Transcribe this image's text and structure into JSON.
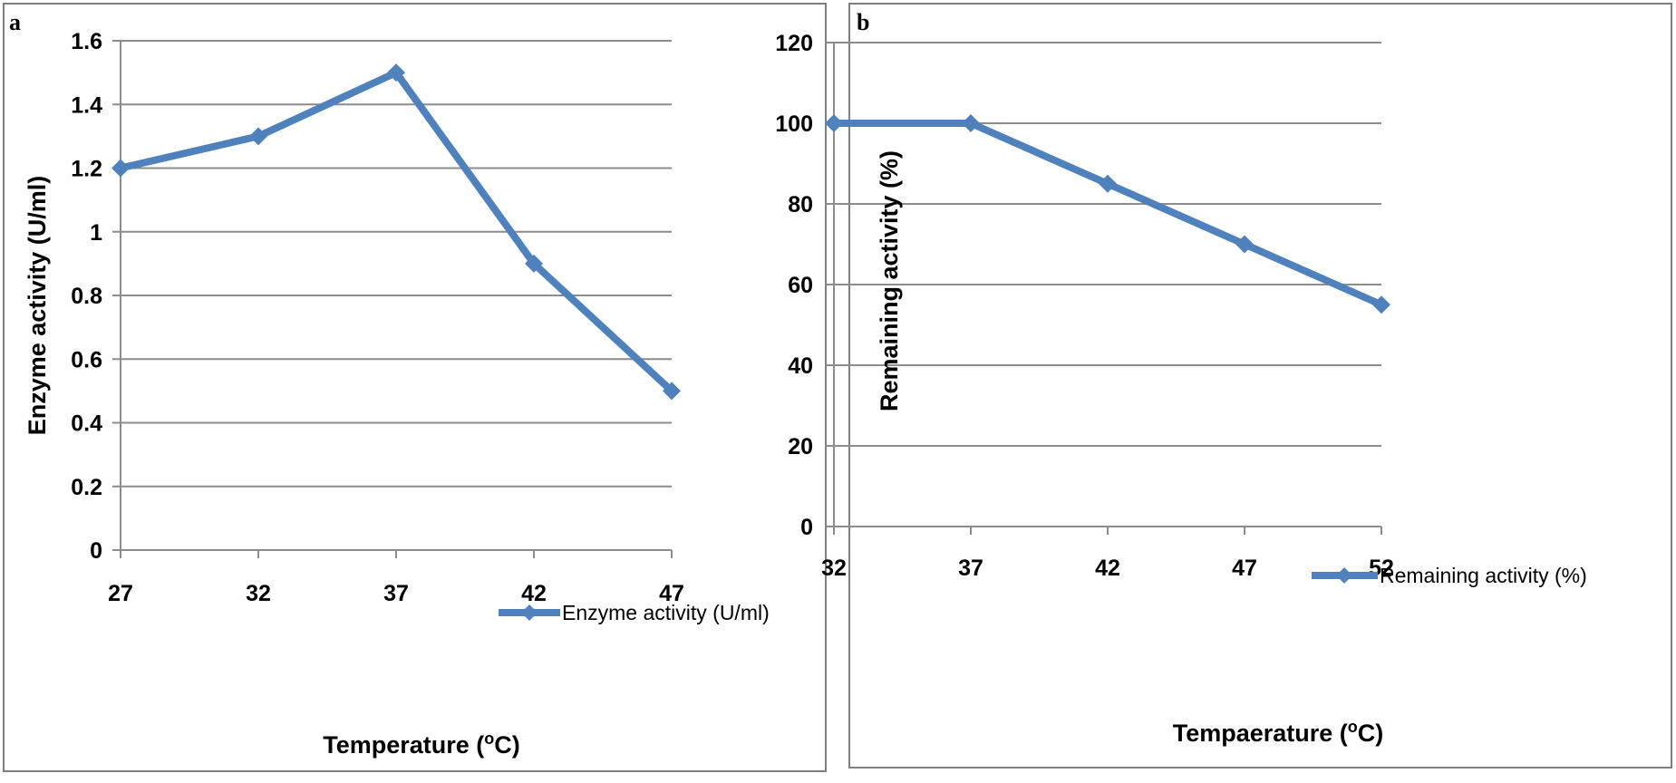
{
  "colors": {
    "series": "#4f81bd",
    "grid": "#8c8c8c",
    "frame": "#7f7f7f"
  },
  "chart_data": [
    {
      "type": "line",
      "panel": "a",
      "x": [
        27,
        32,
        37,
        42,
        47
      ],
      "series": [
        {
          "name": "Enzyme activity (U/ml)",
          "values": [
            1.2,
            1.3,
            1.5,
            0.9,
            0.5
          ]
        }
      ],
      "xlabel": "Temperature (",
      "xlabel_sup": "o",
      "xlabel_end": "C)",
      "ylabel": "Enzyme  activity (U/ml)",
      "ylim": [
        0,
        1.6
      ],
      "yticks": [
        "0",
        "0.2",
        "0.4",
        "0.6",
        "0.8",
        "1",
        "1.2",
        "1.4",
        "1.6"
      ],
      "xticks": [
        "27",
        "32",
        "37",
        "42",
        "47"
      ],
      "legend": "Enzyme activity (U/ml)",
      "legend_position": "bottom-right",
      "grid": true
    },
    {
      "type": "line",
      "panel": "b",
      "x": [
        32,
        37,
        42,
        47,
        52
      ],
      "series": [
        {
          "name": "Remaining activity (%)",
          "values": [
            100,
            100,
            85,
            70,
            55
          ]
        }
      ],
      "xlabel": "Tempaerature (",
      "xlabel_sup": "o",
      "xlabel_end": "C)",
      "ylabel": "Remaining activity (%)",
      "ylim": [
        0,
        120
      ],
      "yticks": [
        "0",
        "20",
        "40",
        "60",
        "80",
        "100",
        "120"
      ],
      "xticks": [
        "32",
        "37",
        "42",
        "47",
        "52"
      ],
      "legend": "Remaining activity (%)",
      "legend_position": "bottom-right",
      "grid": true
    }
  ]
}
